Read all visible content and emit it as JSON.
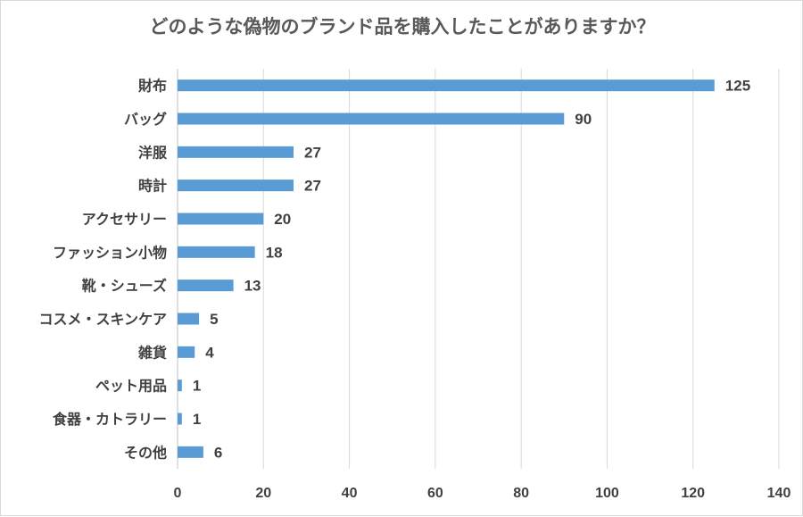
{
  "chart_data": {
    "type": "bar",
    "orientation": "horizontal",
    "title": "どのような偽物のブランド品を購入したことがありますか？",
    "categories": [
      "財布",
      "バッグ",
      "洋服",
      "時計",
      "アクセサリー",
      "ファッション小物",
      "靴・シューズ",
      "コスメ・スキンケア",
      "雑貨",
      "ペット用品",
      "食器・カトラリー",
      "その他"
    ],
    "values": [
      125,
      90,
      27,
      27,
      20,
      18,
      13,
      5,
      4,
      1,
      1,
      6
    ],
    "xlim": [
      0,
      140
    ],
    "xticks": [
      0,
      20,
      40,
      60,
      80,
      100,
      120,
      140
    ],
    "xlabel": "",
    "ylabel": "",
    "grid": true,
    "bar_color": "#5b9bd5"
  }
}
